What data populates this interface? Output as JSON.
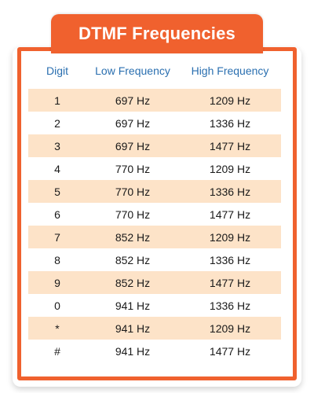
{
  "title": "DTMF Frequencies",
  "headers": {
    "digit": "Digit",
    "low": "Low Frequency",
    "high": "High Frequency"
  },
  "rows": [
    {
      "digit": "1",
      "low": "697 Hz",
      "high": "1209 Hz"
    },
    {
      "digit": "2",
      "low": "697 Hz",
      "high": "1336 Hz"
    },
    {
      "digit": "3",
      "low": "697 Hz",
      "high": "1477 Hz"
    },
    {
      "digit": "4",
      "low": "770 Hz",
      "high": "1209 Hz"
    },
    {
      "digit": "5",
      "low": "770 Hz",
      "high": "1336 Hz"
    },
    {
      "digit": "6",
      "low": "770 Hz",
      "high": "1477 Hz"
    },
    {
      "digit": "7",
      "low": "852 Hz",
      "high": "1209 Hz"
    },
    {
      "digit": "8",
      "low": "852 Hz",
      "high": "1336 Hz"
    },
    {
      "digit": "9",
      "low": "852 Hz",
      "high": "1477 Hz"
    },
    {
      "digit": "0",
      "low": "941 Hz",
      "high": "1336 Hz"
    },
    {
      "digit": "*",
      "low": "941 Hz",
      "high": "1209 Hz"
    },
    {
      "digit": "#",
      "low": "941 Hz",
      "high": "1477 Hz"
    }
  ],
  "colors": {
    "accent": "#f0612e",
    "header_text": "#2a6fb0",
    "shaded_row": "#fde3c8"
  }
}
